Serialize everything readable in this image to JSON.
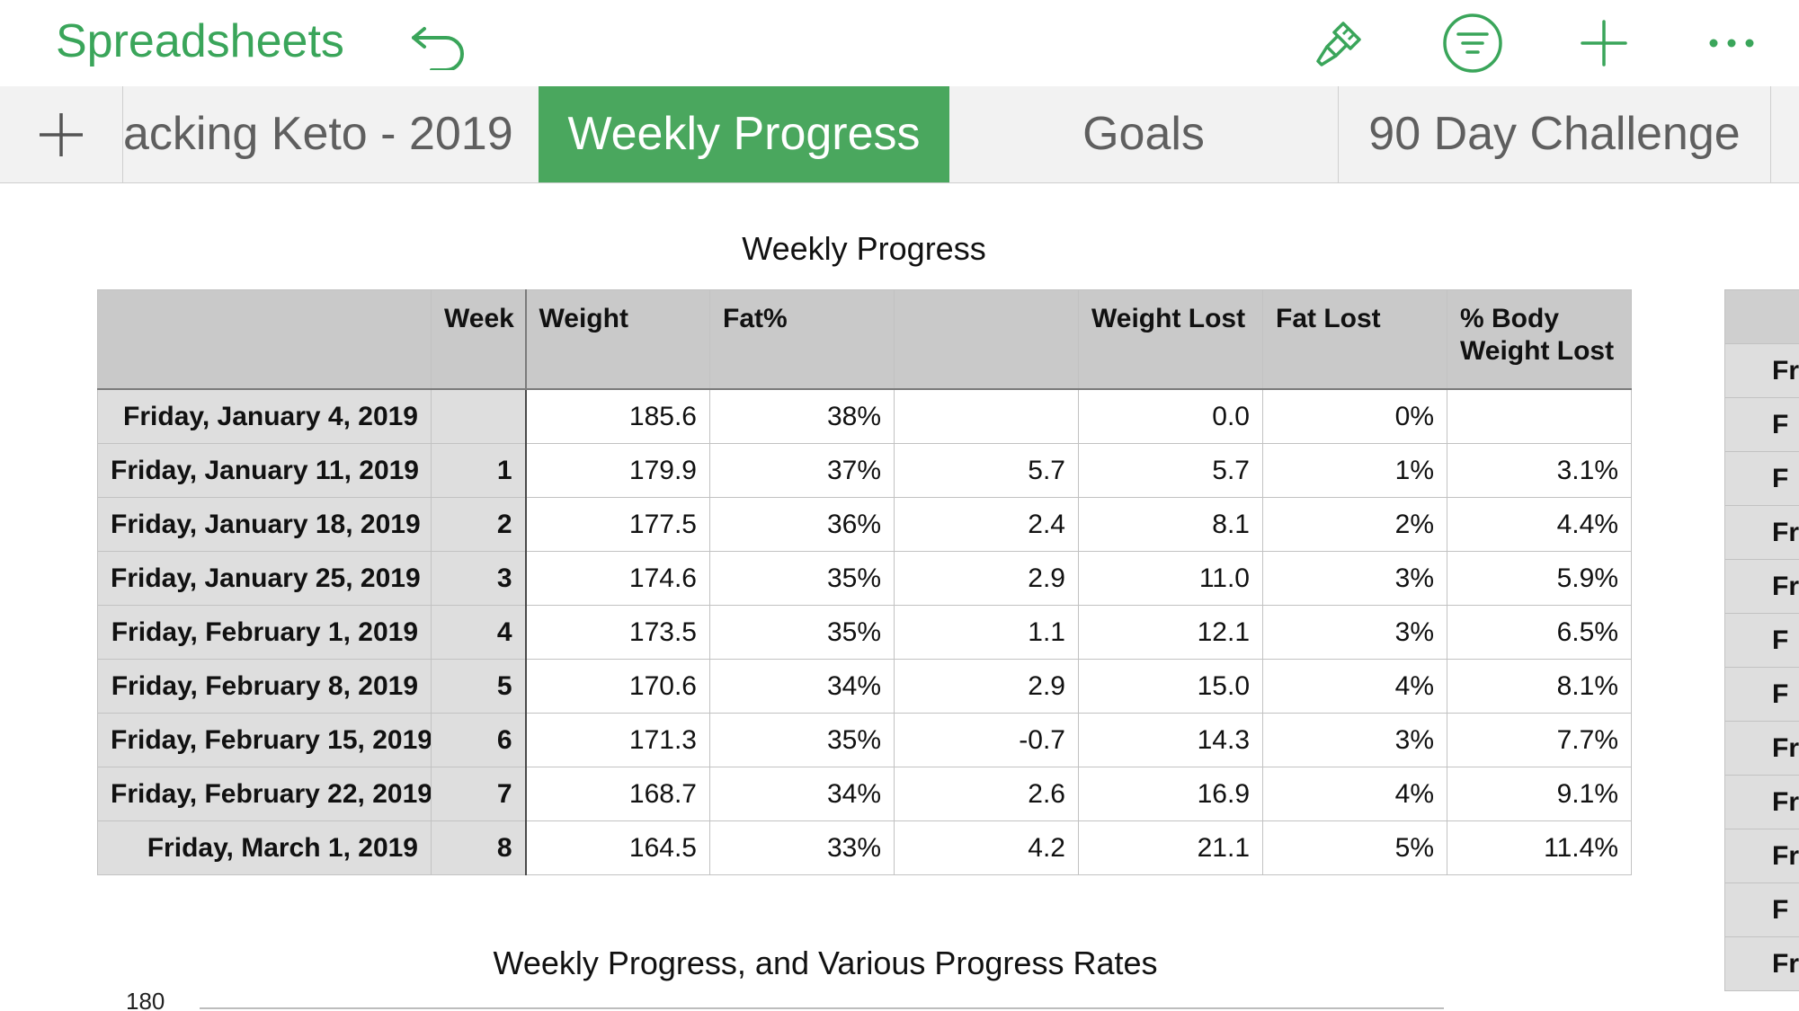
{
  "toolbar": {
    "back_label": "Spreadsheets",
    "icons": [
      "undo-icon",
      "paintbrush-icon",
      "filter-icon",
      "plus-icon",
      "more-icon"
    ],
    "accent": "#3aa55a"
  },
  "tabs": {
    "items": [
      {
        "label": "acking Keto - 2019",
        "active": false
      },
      {
        "label": "Weekly Progress",
        "active": true
      },
      {
        "label": "Goals",
        "active": false
      },
      {
        "label": "90 Day Challenge",
        "active": false
      }
    ],
    "active_color": "#4aa75e"
  },
  "table": {
    "title": "Weekly Progress",
    "columns": [
      "",
      "Week",
      "Weight",
      "Fat%",
      "",
      "Weight Lost",
      "Fat Lost",
      "% Body Weight Lost"
    ],
    "rows": [
      [
        "Friday, January 4, 2019",
        "",
        "185.6",
        "38%",
        "",
        "0.0",
        "0%",
        ""
      ],
      [
        "Friday, January 11, 2019",
        "1",
        "179.9",
        "37%",
        "5.7",
        "5.7",
        "1%",
        "3.1%"
      ],
      [
        "Friday, January 18, 2019",
        "2",
        "177.5",
        "36%",
        "2.4",
        "8.1",
        "2%",
        "4.4%"
      ],
      [
        "Friday, January 25, 2019",
        "3",
        "174.6",
        "35%",
        "2.9",
        "11.0",
        "3%",
        "5.9%"
      ],
      [
        "Friday, February 1, 2019",
        "4",
        "173.5",
        "35%",
        "1.1",
        "12.1",
        "3%",
        "6.5%"
      ],
      [
        "Friday, February 8, 2019",
        "5",
        "170.6",
        "34%",
        "2.9",
        "15.0",
        "4%",
        "8.1%"
      ],
      [
        "Friday, February 15, 2019",
        "6",
        "171.3",
        "35%",
        "-0.7",
        "14.3",
        "3%",
        "7.7%"
      ],
      [
        "Friday, February 22, 2019",
        "7",
        "168.7",
        "34%",
        "2.6",
        "16.9",
        "4%",
        "9.1%"
      ],
      [
        "Friday, March 1, 2019",
        "8",
        "164.5",
        "33%",
        "4.2",
        "21.1",
        "5%",
        "11.4%"
      ]
    ]
  },
  "side_table": {
    "rows": [
      "Fri",
      "F",
      "F",
      "Fri",
      "Fri",
      "F",
      "F",
      "Fri",
      "Fri",
      "Fri",
      "F",
      "Fri"
    ]
  },
  "chart": {
    "title": "Weekly Progress, and Various Progress Rates",
    "first_tick": "180"
  }
}
